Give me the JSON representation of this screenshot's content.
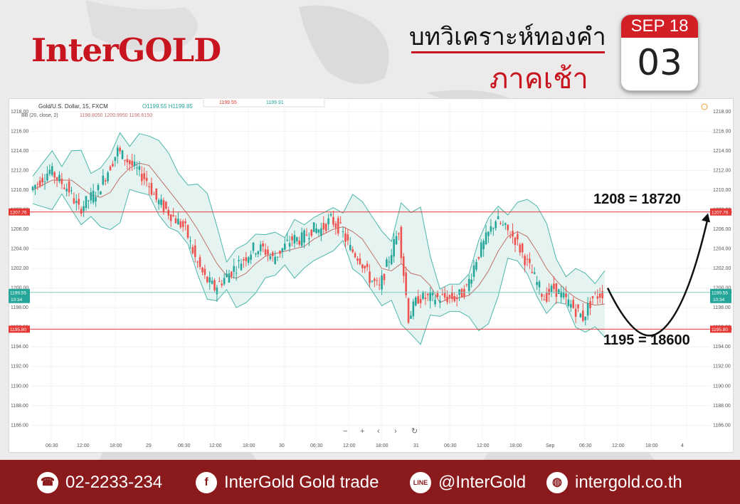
{
  "header": {
    "logo": "InterGOLD",
    "title_line1": "บทวิเคราะห์ทองคำ",
    "title_line2": "ภาคเช้า",
    "calendar": {
      "month_year": "SEP 18",
      "day": "03"
    }
  },
  "chart_data": {
    "type": "candlestick",
    "header_label": "Gold/U.S. Dollar, 15, FXCM",
    "ohlc": {
      "O": "1199.55",
      "H": "1199.85"
    },
    "bb_label": "BB (20, close, 2)",
    "bb_values": [
      "1198.8050",
      "1200.9950",
      "1196.6150"
    ],
    "quote_sell": "1199.55",
    "quote_buy": "1199.91",
    "ylim": [
      1184.5,
      1219
    ],
    "y_ticks": [
      "1218.00",
      "1216.00",
      "1214.00",
      "1212.00",
      "1210.00",
      "1208.00",
      "1206.00",
      "1204.00",
      "1202.00",
      "1200.00",
      "1198.00",
      "1196.00",
      "1194.00",
      "1192.00",
      "1190.00",
      "1188.00",
      "1186.00"
    ],
    "x_labels": [
      "06:30",
      "12:00",
      "18:00",
      "29",
      "06:30",
      "12:00",
      "18:00",
      "30",
      "06:30",
      "12:00",
      "18:00",
      "31",
      "06:30",
      "12:00",
      "18:00",
      "Sep",
      "06:30",
      "12:00",
      "18:00",
      "4"
    ],
    "resistance": {
      "value": 1207.76,
      "label": "1207.76"
    },
    "support": {
      "value": 1195.8,
      "label": "1195.80"
    },
    "price": {
      "value": 1199.55,
      "label": "1199.55",
      "timer": "10:34"
    },
    "close_path": [
      1210,
      1211,
      1212,
      1211,
      1210,
      1208,
      1209,
      1210,
      1212,
      1214,
      1213,
      1212,
      1211,
      1209,
      1208,
      1207,
      1206,
      1203,
      1201,
      1200,
      1201,
      1202,
      1203,
      1204,
      1204,
      1203,
      1204,
      1205,
      1205,
      1206,
      1206,
      1207,
      1206,
      1204,
      1203,
      1201,
      1200,
      1203,
      1206,
      1197,
      1199,
      1199,
      1199,
      1199,
      1199,
      1200,
      1203,
      1205,
      1207,
      1206,
      1205,
      1203,
      1201,
      1199,
      1200,
      1199,
      1198,
      1197,
      1199,
      1199.5
    ],
    "annotations": [
      {
        "text": "1208 = 18720",
        "level": 1208
      },
      {
        "text": "1195 = 18600",
        "level": 1195
      }
    ],
    "toolbar": [
      "−",
      "+",
      "‹",
      "›",
      "↻"
    ]
  },
  "footer": {
    "phone": "02-2233-234",
    "facebook": "InterGold Gold trade",
    "line": "@InterGold",
    "website": "intergold.co.th"
  },
  "colors": {
    "brand_red": "#c8141e",
    "footer": "#8b1a1d",
    "up": "#26a69a",
    "down": "#ef5350",
    "band": "#4db6ac"
  }
}
